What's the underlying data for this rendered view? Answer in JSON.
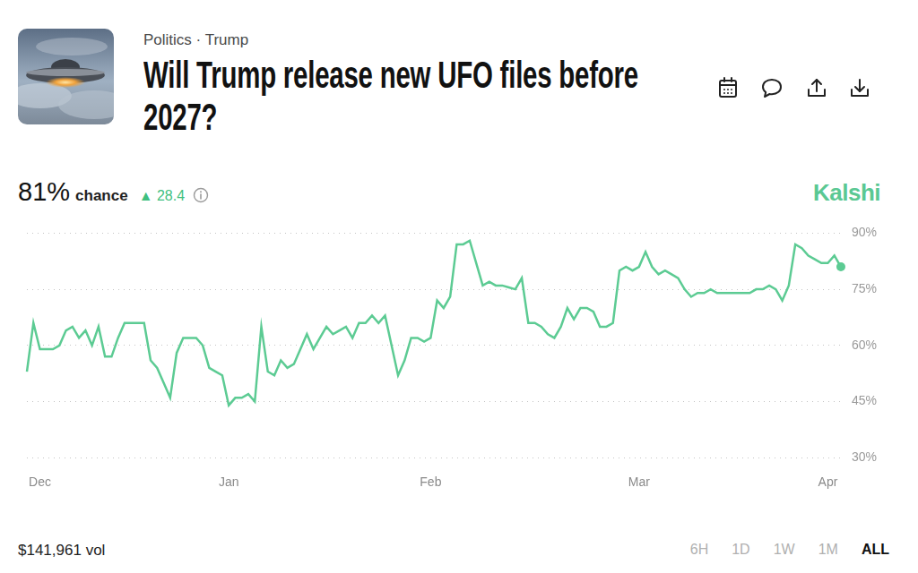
{
  "header": {
    "breadcrumb": "Politics · Trump"
  },
  "summary": {
    "chance": "81%",
    "chance_text": "chance",
    "change": "▲ 28.4"
  },
  "brand": "Kalshi",
  "footer": {
    "volume": "$141,961 vol",
    "timeframes": [
      "6H",
      "1D",
      "1W",
      "1M",
      "ALL"
    ],
    "selected": "ALL"
  },
  "chart_data": {
    "type": "line",
    "title": "Will Trump release new UFO files before 2027?",
    "categories": [
      null,
      null,
      "Dec",
      null,
      null,
      null,
      null,
      null,
      null,
      null,
      null,
      null,
      null,
      null,
      null,
      null,
      null,
      null,
      null,
      null,
      null,
      null,
      null,
      null,
      null,
      null,
      null,
      null,
      null,
      null,
      null,
      "Jan",
      null,
      null,
      null,
      null,
      null,
      null,
      null,
      null,
      null,
      null,
      null,
      null,
      null,
      null,
      null,
      null,
      null,
      null,
      null,
      null,
      null,
      null,
      null,
      null,
      null,
      null,
      null,
      null,
      null,
      null,
      "Feb",
      null,
      null,
      null,
      null,
      null,
      null,
      null,
      null,
      null,
      null,
      null,
      null,
      null,
      null,
      null,
      null,
      null,
      null,
      null,
      null,
      null,
      null,
      null,
      null,
      null,
      null,
      null,
      null,
      null,
      null,
      null,
      "Mar",
      null,
      null,
      null,
      null,
      null,
      null,
      null,
      null,
      null,
      null,
      null,
      null,
      null,
      null,
      null,
      null,
      null,
      null,
      null,
      null,
      null,
      null,
      null,
      null,
      null,
      null,
      null,
      null,
      "Apr",
      null,
      null
    ],
    "values": [
      53,
      66,
      59,
      59,
      59,
      60,
      64,
      65,
      62,
      64,
      60,
      65,
      57,
      57,
      62,
      66,
      66,
      66,
      66,
      56,
      54,
      50,
      46,
      58,
      62,
      62,
      62,
      60,
      54,
      53,
      52,
      44,
      46,
      46,
      47,
      45,
      65,
      53,
      52,
      56,
      54,
      55,
      59,
      63,
      59,
      62,
      65,
      63,
      64,
      65,
      62,
      66,
      66,
      68,
      66,
      68,
      60,
      52,
      56,
      62,
      62,
      61,
      62,
      72,
      70,
      73,
      87,
      87,
      88,
      82,
      76,
      77,
      76,
      76,
      75.5,
      75,
      78,
      66,
      66,
      65,
      63,
      62,
      65,
      70,
      67,
      70,
      70,
      69,
      65,
      65,
      66,
      80,
      81,
      80,
      81,
      85,
      81,
      79,
      80,
      79,
      78,
      75,
      73,
      74,
      74,
      75,
      74,
      74,
      74,
      74,
      74,
      74,
      75,
      75,
      76,
      75,
      72,
      76,
      87,
      86,
      84,
      83,
      82,
      82,
      84,
      81
    ],
    "color": "#5ccb93",
    "marker": "last",
    "ylim": [
      30,
      90
    ],
    "yticks": [
      {
        "value": 30,
        "label": "30%"
      },
      {
        "value": 45,
        "label": "45%"
      },
      {
        "value": 60,
        "label": "60%"
      },
      {
        "value": 75,
        "label": "75%"
      },
      {
        "value": 90,
        "label": "90%"
      }
    ],
    "grid": true
  }
}
